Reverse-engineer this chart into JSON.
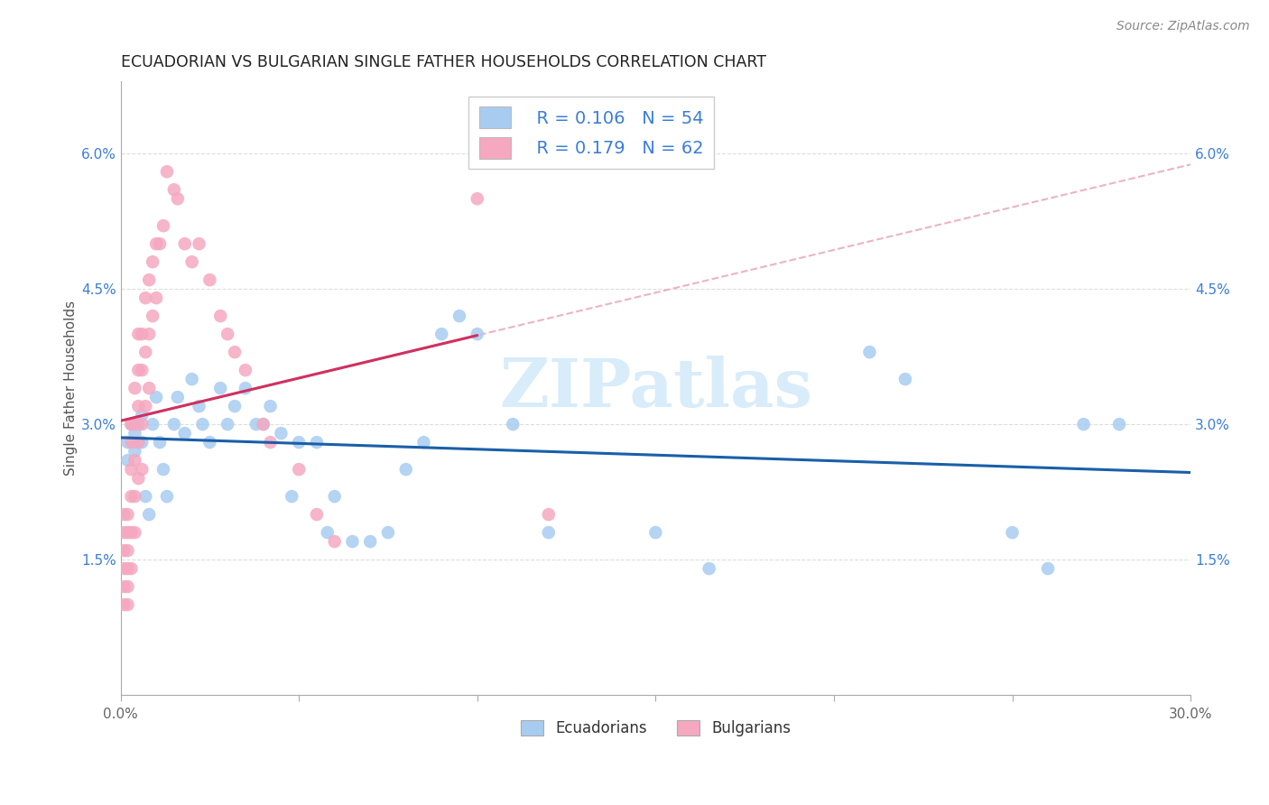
{
  "title": "ECUADORIAN VS BULGARIAN SINGLE FATHER HOUSEHOLDS CORRELATION CHART",
  "source": "Source: ZipAtlas.com",
  "ylabel": "Single Father Households",
  "xlim": [
    0.0,
    0.3
  ],
  "ylim": [
    0.0,
    0.068
  ],
  "xticks": [
    0.0,
    0.05,
    0.1,
    0.15,
    0.2,
    0.25,
    0.3
  ],
  "xticklabels": [
    "0.0%",
    "",
    "",
    "",
    "",
    "",
    "30.0%"
  ],
  "yticks": [
    0.0,
    0.015,
    0.03,
    0.045,
    0.06
  ],
  "yticklabels": [
    "",
    "1.5%",
    "3.0%",
    "4.5%",
    "6.0%"
  ],
  "R_ecuadorian": 0.106,
  "N_ecuadorian": 54,
  "R_bulgarian": 0.179,
  "N_bulgarian": 62,
  "ecuadorian_color": "#A8CCF0",
  "bulgarian_color": "#F5A8C0",
  "ecuadorian_line_color": "#1A5FA8",
  "bulgarian_line_color": "#D03060",
  "dashed_line_color": "#E8A0B8",
  "watermark_color": "#C8E4F8",
  "background_color": "#ffffff",
  "grid_color": "#dddddd",
  "ecuadorian_x": [
    0.002,
    0.002,
    0.003,
    0.004,
    0.004,
    0.005,
    0.005,
    0.006,
    0.006,
    0.007,
    0.008,
    0.009,
    0.01,
    0.011,
    0.012,
    0.013,
    0.015,
    0.016,
    0.018,
    0.02,
    0.022,
    0.023,
    0.025,
    0.028,
    0.03,
    0.032,
    0.035,
    0.038,
    0.04,
    0.042,
    0.045,
    0.048,
    0.05,
    0.055,
    0.058,
    0.06,
    0.065,
    0.07,
    0.075,
    0.08,
    0.085,
    0.09,
    0.095,
    0.1,
    0.11,
    0.12,
    0.15,
    0.165,
    0.21,
    0.22,
    0.25,
    0.26,
    0.27,
    0.28
  ],
  "ecuadorian_y": [
    0.028,
    0.026,
    0.03,
    0.027,
    0.029,
    0.028,
    0.03,
    0.028,
    0.031,
    0.022,
    0.02,
    0.03,
    0.033,
    0.028,
    0.025,
    0.022,
    0.03,
    0.033,
    0.029,
    0.035,
    0.032,
    0.03,
    0.028,
    0.034,
    0.03,
    0.032,
    0.034,
    0.03,
    0.03,
    0.032,
    0.029,
    0.022,
    0.028,
    0.028,
    0.018,
    0.022,
    0.017,
    0.017,
    0.018,
    0.025,
    0.028,
    0.04,
    0.042,
    0.04,
    0.03,
    0.018,
    0.018,
    0.014,
    0.038,
    0.035,
    0.018,
    0.014,
    0.03,
    0.03
  ],
  "bulgarian_x": [
    0.001,
    0.001,
    0.001,
    0.001,
    0.001,
    0.001,
    0.002,
    0.002,
    0.002,
    0.002,
    0.002,
    0.002,
    0.003,
    0.003,
    0.003,
    0.003,
    0.003,
    0.003,
    0.004,
    0.004,
    0.004,
    0.004,
    0.004,
    0.005,
    0.005,
    0.005,
    0.005,
    0.005,
    0.006,
    0.006,
    0.006,
    0.006,
    0.007,
    0.007,
    0.007,
    0.008,
    0.008,
    0.008,
    0.009,
    0.009,
    0.01,
    0.01,
    0.011,
    0.012,
    0.013,
    0.015,
    0.016,
    0.018,
    0.02,
    0.022,
    0.025,
    0.028,
    0.03,
    0.032,
    0.035,
    0.04,
    0.042,
    0.05,
    0.055,
    0.06,
    0.1,
    0.12
  ],
  "bulgarian_y": [
    0.02,
    0.018,
    0.016,
    0.014,
    0.012,
    0.01,
    0.02,
    0.018,
    0.016,
    0.014,
    0.012,
    0.01,
    0.03,
    0.028,
    0.025,
    0.022,
    0.018,
    0.014,
    0.034,
    0.03,
    0.026,
    0.022,
    0.018,
    0.04,
    0.036,
    0.032,
    0.028,
    0.024,
    0.04,
    0.036,
    0.03,
    0.025,
    0.044,
    0.038,
    0.032,
    0.046,
    0.04,
    0.034,
    0.048,
    0.042,
    0.05,
    0.044,
    0.05,
    0.052,
    0.058,
    0.056,
    0.055,
    0.05,
    0.048,
    0.05,
    0.046,
    0.042,
    0.04,
    0.038,
    0.036,
    0.03,
    0.028,
    0.025,
    0.02,
    0.017,
    0.055,
    0.02
  ]
}
